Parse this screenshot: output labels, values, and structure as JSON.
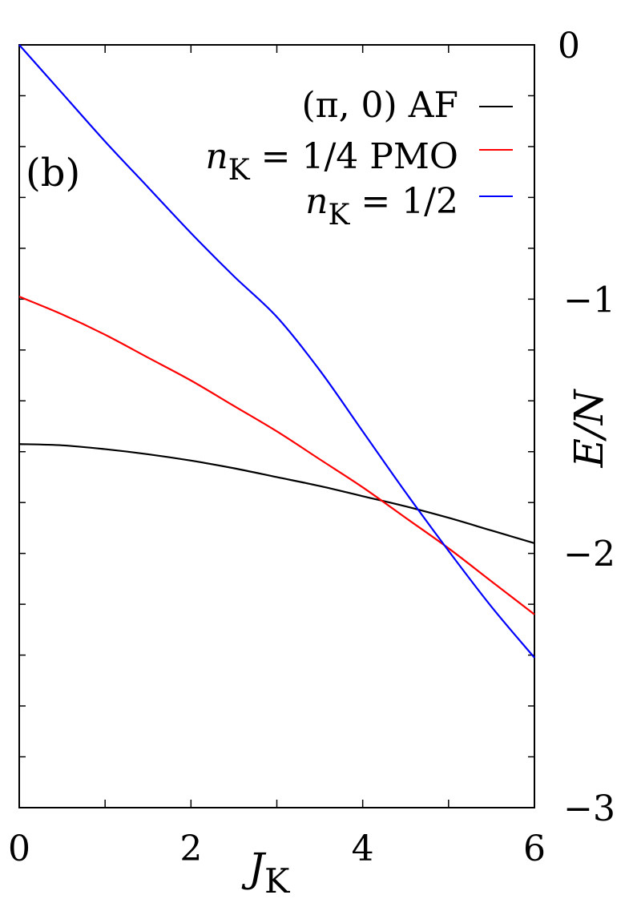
{
  "chart_data": {
    "type": "line",
    "panel_label": "(b)",
    "xlabel": "J_K",
    "xlabel_main": "J",
    "xlabel_sub": "K",
    "ylabel": "E/N",
    "xlim": [
      0,
      6
    ],
    "ylim": [
      -3,
      0
    ],
    "x_ticks": [
      0,
      2,
      4,
      6
    ],
    "x_tick_labels": [
      "0",
      "2",
      "4",
      "6"
    ],
    "y_ticks": [
      0,
      -1,
      -2,
      -3
    ],
    "y_tick_labels": [
      "0",
      "−1",
      "−2",
      "−3"
    ],
    "x_minor_step": 1,
    "y_minor_step": 0.2,
    "grid": false,
    "legend_position": "top-right",
    "series": [
      {
        "name": "(π, 0) AF",
        "color": "#000000",
        "x": [
          0,
          0.5,
          1,
          1.5,
          2,
          2.5,
          3,
          3.5,
          4,
          4.5,
          5,
          5.5,
          6
        ],
        "y": [
          -1.57,
          -1.575,
          -1.59,
          -1.61,
          -1.635,
          -1.665,
          -1.7,
          -1.735,
          -1.775,
          -1.815,
          -1.86,
          -1.91,
          -1.96
        ]
      },
      {
        "name": "n_K = 1/4 PMO",
        "color": "#ff0000",
        "x": [
          0,
          0.5,
          1,
          1.5,
          2,
          2.5,
          3,
          3.5,
          4,
          4.5,
          5,
          5.5,
          6
        ],
        "y": [
          -0.99,
          -1.06,
          -1.14,
          -1.23,
          -1.32,
          -1.42,
          -1.52,
          -1.63,
          -1.74,
          -1.86,
          -1.98,
          -2.11,
          -2.24
        ]
      },
      {
        "name": "n_K = 1/2",
        "color": "#0000ff",
        "x": [
          0,
          0.5,
          1,
          1.5,
          2,
          2.5,
          3,
          3.5,
          4,
          4.5,
          5,
          5.5,
          6
        ],
        "y": [
          0,
          -0.19,
          -0.38,
          -0.56,
          -0.74,
          -0.91,
          -1.07,
          -1.28,
          -1.52,
          -1.76,
          -1.99,
          -2.21,
          -2.41
        ]
      }
    ],
    "legend": [
      {
        "label": "(π, 0) AF",
        "color": "#000000"
      },
      {
        "label_main": "n",
        "label_sub": "K",
        "label_rest": " = 1/4 PMO",
        "color": "#ff0000"
      },
      {
        "label_main": "n",
        "label_sub": "K",
        "label_rest": " = 1/2",
        "color": "#0000ff"
      }
    ]
  }
}
